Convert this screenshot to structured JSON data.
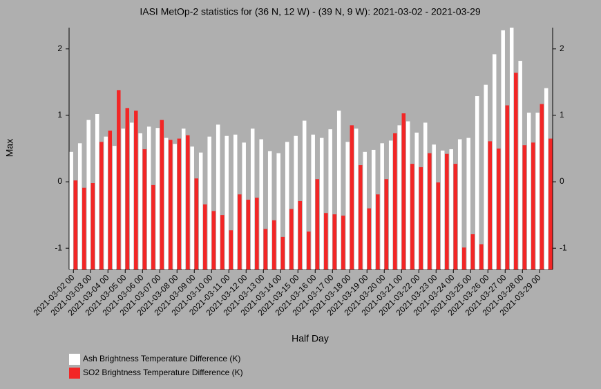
{
  "chart_data": {
    "type": "bar",
    "title": "IASI MetOp-2 statistics for (36 N, 12 W) - (39 N, 9 W): 2021-03-02 - 2021-03-29",
    "x_label": "Half Day",
    "y_label": "Max",
    "categories": [
      "2021-03-02 00",
      null,
      "2021-03-03 00",
      null,
      "2021-03-04 00",
      null,
      "2021-03-05 00",
      null,
      "2021-03-06 00",
      null,
      "2021-03-07 00",
      null,
      "2021-03-08 00",
      null,
      "2021-03-09 00",
      null,
      "2021-03-10 00",
      null,
      "2021-03-11 00",
      null,
      "2021-03-12 00",
      null,
      "2021-03-13 00",
      null,
      "2021-03-14 00",
      null,
      "2021-03-15 00",
      null,
      "2021-03-16 00",
      null,
      "2021-03-17 00",
      null,
      "2021-03-18 00",
      null,
      "2021-03-19 00",
      null,
      "2021-03-20 00",
      null,
      "2021-03-21 00",
      null,
      "2021-03-22 00",
      null,
      "2021-03-23 00",
      null,
      "2021-03-24 00",
      null,
      "2021-03-25 00",
      null,
      "2021-03-26 00",
      null,
      "2021-03-27 00",
      null,
      "2021-03-28 00",
      null,
      "2021-03-29 00",
      null
    ],
    "series": [
      {
        "name": "Ash Brightness Temperature Difference (K)",
        "color": "#ffffff",
        "values": [
          0.45,
          0.58,
          0.93,
          1.02,
          0.68,
          0.54,
          0.8,
          0.89,
          0.73,
          0.83,
          0.81,
          0.66,
          0.57,
          0.8,
          0.53,
          0.44,
          0.68,
          0.86,
          0.69,
          0.71,
          0.59,
          0.8,
          0.64,
          0.46,
          0.43,
          0.6,
          0.69,
          0.92,
          0.71,
          0.66,
          0.79,
          1.07,
          0.6,
          0.8,
          0.45,
          0.48,
          0.58,
          0.62,
          0.85,
          0.91,
          0.74,
          0.89,
          0.56,
          0.47,
          0.49,
          0.64,
          0.66,
          1.29,
          1.46,
          1.92,
          2.28,
          2.32,
          1.82,
          1.04,
          1.04,
          1.41
        ]
      },
      {
        "name": "SO2 Brightness Temperature Difference (K)",
        "color": "#f22626",
        "values": [
          0.02,
          -0.09,
          -0.02,
          0.6,
          0.77,
          1.38,
          1.11,
          1.07,
          0.49,
          -0.05,
          0.93,
          0.63,
          0.65,
          0.7,
          0.05,
          -0.34,
          -0.44,
          -0.5,
          -0.73,
          -0.19,
          -0.27,
          -0.24,
          -0.71,
          -0.58,
          -0.83,
          -0.41,
          -0.29,
          -0.75,
          0.04,
          -0.47,
          -0.49,
          -0.51,
          0.85,
          0.25,
          -0.4,
          -0.19,
          0.04,
          0.73,
          1.03,
          0.27,
          0.22,
          0.43,
          -0.01,
          0.42,
          0.27,
          -0.99,
          -0.79,
          -0.94,
          0.61,
          0.5,
          1.15,
          1.64,
          0.55,
          0.59,
          1.17,
          0.65
        ]
      }
    ],
    "ylim": [
      -1.32,
      2.32
    ],
    "yticks": [
      -1,
      0,
      1,
      2
    ]
  }
}
